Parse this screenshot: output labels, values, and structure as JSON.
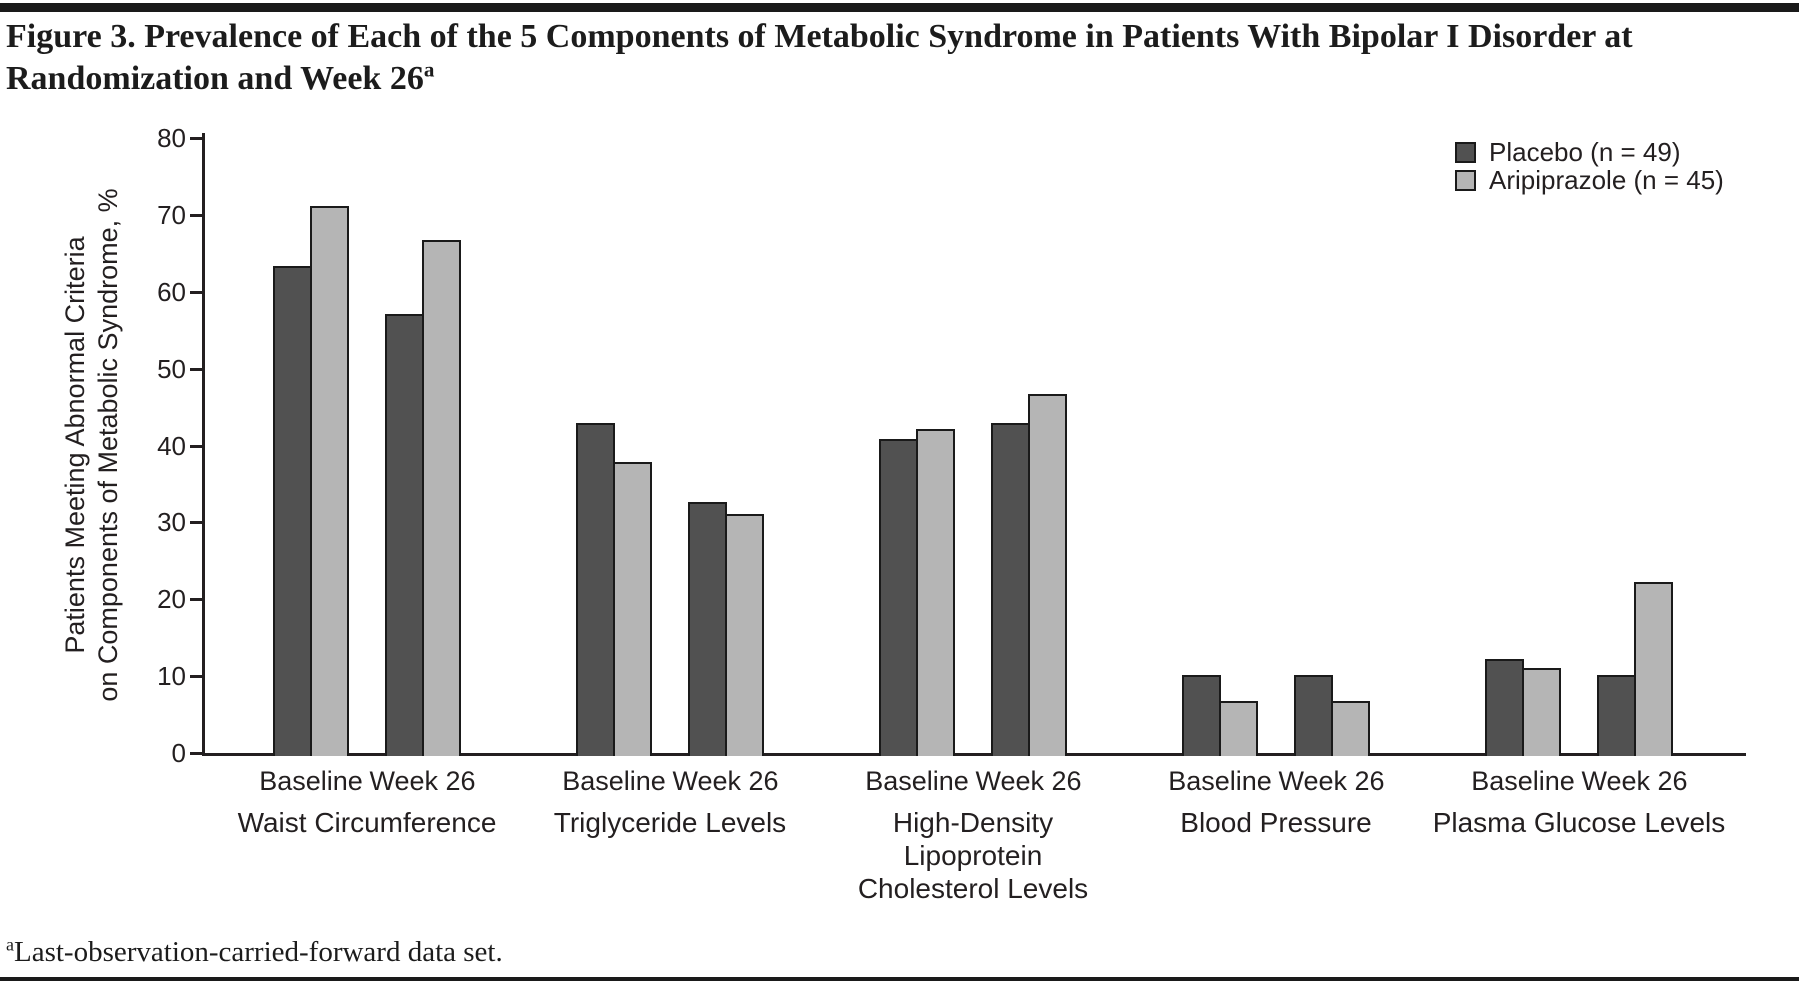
{
  "figure": {
    "title_lines": [
      "Figure 3. Prevalence of Each of the 5 Components of Metabolic Syndrome in Patients With Bipolar I Disorder at",
      "Randomization and Week 26"
    ],
    "title_superscript": "a",
    "footnote_superscript": "a",
    "footnote_text": "Last-observation-carried-forward data set."
  },
  "chart_data": {
    "type": "bar",
    "title": "",
    "xlabel": "",
    "ylabel_lines": [
      "Patients Meeting Abnormal Criteria",
      "on Components of Metabolic Syndrome, %"
    ],
    "ylim": [
      0,
      80
    ],
    "ytick_interval": 10,
    "ytick_labels": [
      "0",
      "10",
      "20",
      "30",
      "40",
      "50",
      "60",
      "70",
      "80"
    ],
    "grid": false,
    "legend_position": "top-right",
    "series": [
      {
        "name": "Placebo (n = 49)",
        "color": "#515151"
      },
      {
        "name": "Aripiprazole (n = 45)",
        "color": "#b5b5b5"
      }
    ],
    "timepoints": [
      "Baseline",
      "Week 26"
    ],
    "groups": [
      {
        "label_lines": [
          "Waist Circumference"
        ],
        "values": [
          [
            63.3,
            71.1
          ],
          [
            57.1,
            66.7
          ]
        ]
      },
      {
        "label_lines": [
          "Triglyceride Levels"
        ],
        "values": [
          [
            42.9,
            37.8
          ],
          [
            32.7,
            31.1
          ]
        ]
      },
      {
        "label_lines": [
          "High-Density",
          "Lipoprotein",
          "Cholesterol Levels"
        ],
        "values": [
          [
            40.8,
            42.2
          ],
          [
            42.9,
            46.7
          ]
        ]
      },
      {
        "label_lines": [
          "Blood Pressure"
        ],
        "values": [
          [
            10.2,
            6.7
          ],
          [
            10.2,
            6.7
          ]
        ]
      },
      {
        "label_lines": [
          "Plasma Glucose Levels"
        ],
        "values": [
          [
            12.2,
            11.1
          ],
          [
            10.2,
            22.2
          ]
        ]
      }
    ]
  }
}
